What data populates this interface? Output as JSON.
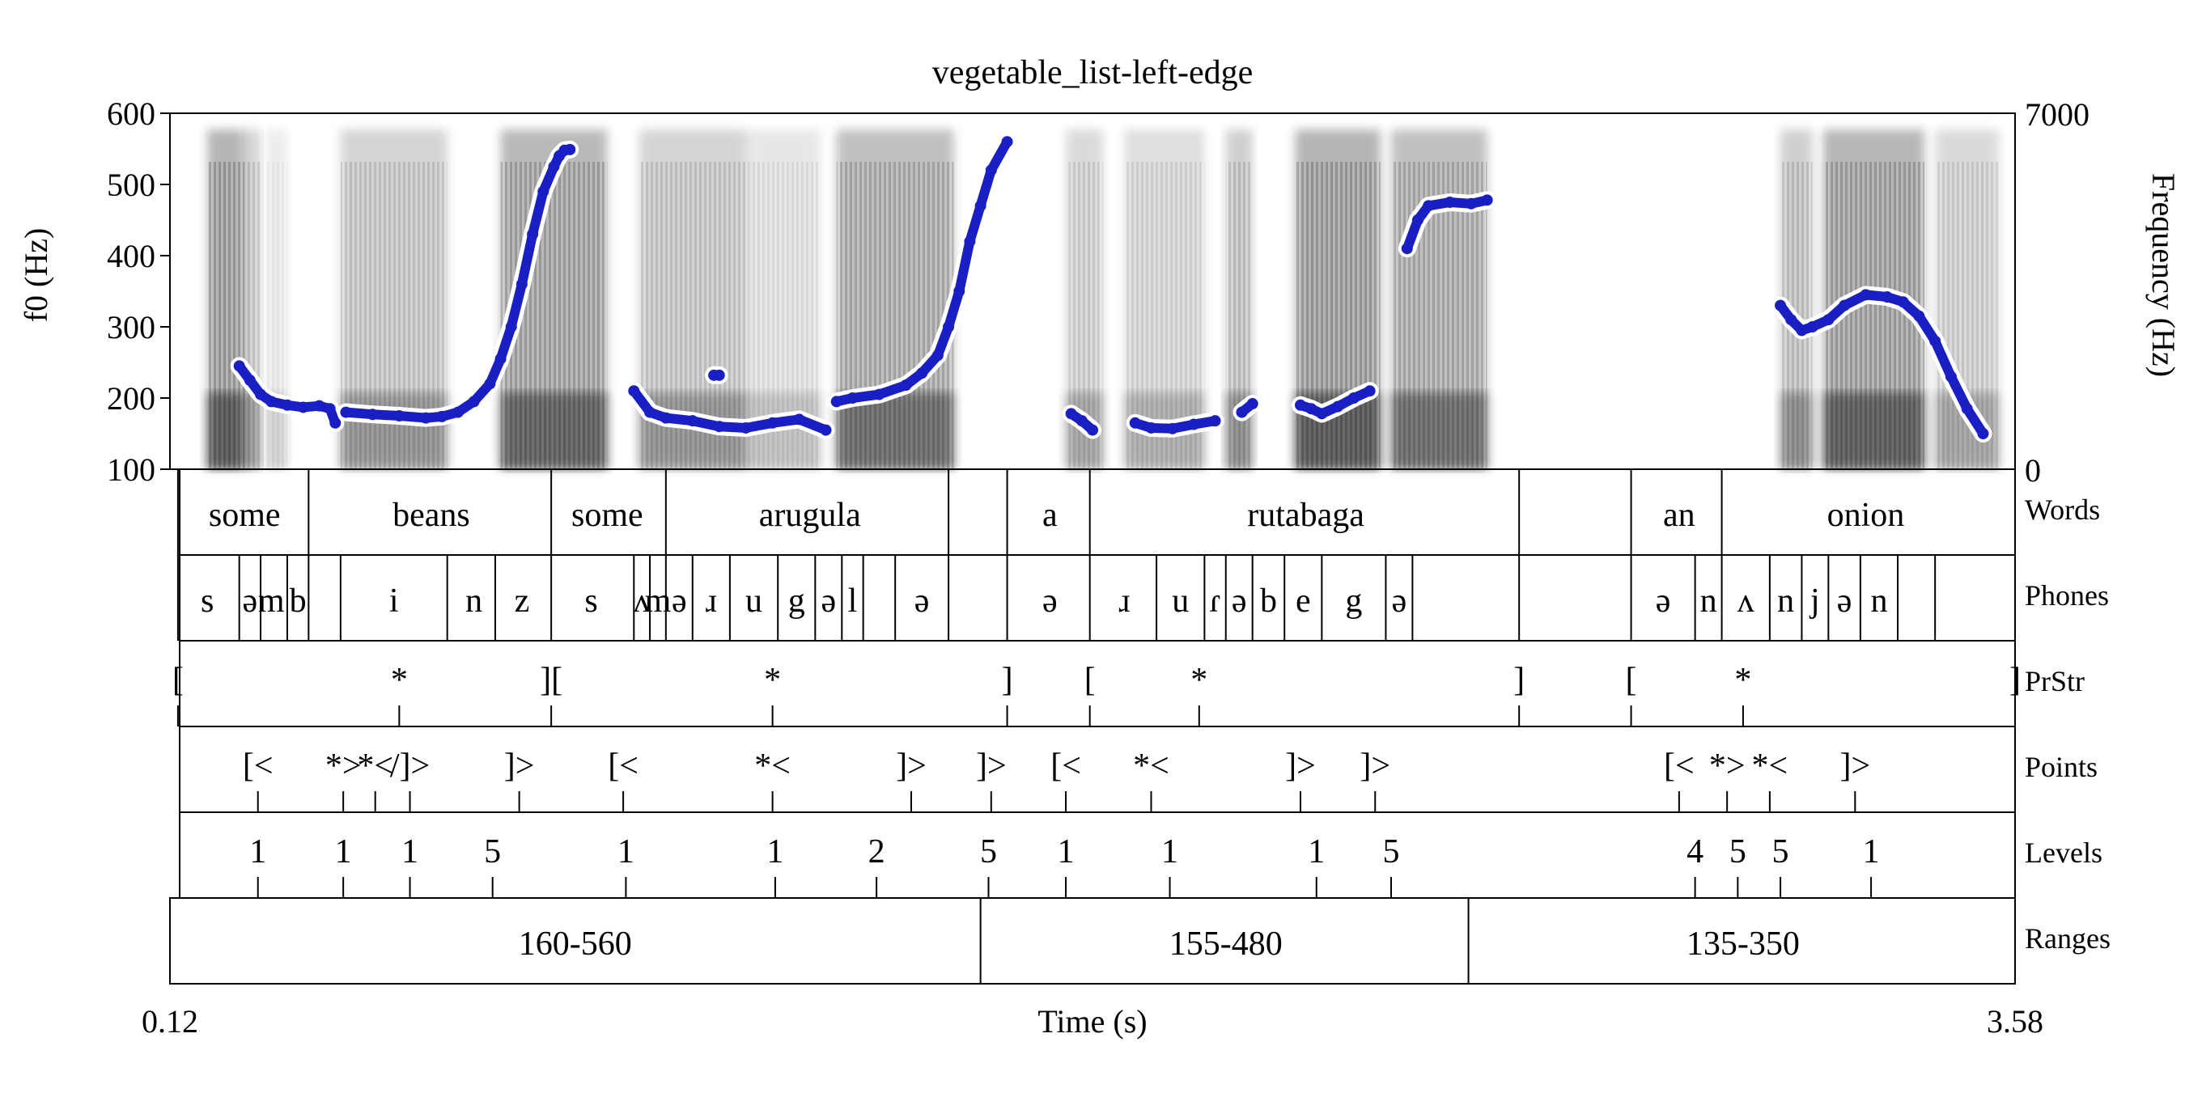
{
  "chart_data": {
    "type": "scatter",
    "title": "vegetable_list-left-edge",
    "xlabel": "Time (s)",
    "ylabel": "f0 (Hz)",
    "ylabel_right": "Frequency (Hz)",
    "xlim": [
      0.12,
      3.58
    ],
    "ylim": [
      100,
      600
    ],
    "yticks": [
      100,
      200,
      300,
      400,
      500,
      600
    ],
    "ylim_right": [
      0,
      7000
    ],
    "yticks_right": [
      "0",
      "7000"
    ],
    "xtick_labels": [
      "0.12",
      "3.58"
    ],
    "colors": {
      "f0": "#1a1fc4",
      "f0_halo": "#ffffff",
      "spectrogram": "#222222"
    },
    "spectrogram_blocks": [
      [
        0.19,
        0.26,
        0.95
      ],
      [
        0.26,
        0.29,
        0.55
      ],
      [
        0.3,
        0.34,
        0.22
      ],
      [
        0.44,
        0.64,
        0.55
      ],
      [
        0.74,
        0.94,
        0.88
      ],
      [
        1.0,
        1.2,
        0.55
      ],
      [
        1.2,
        1.34,
        0.3
      ],
      [
        1.37,
        1.59,
        0.8
      ],
      [
        1.8,
        1.87,
        0.45
      ],
      [
        1.91,
        2.06,
        0.4
      ],
      [
        2.1,
        2.15,
        0.6
      ],
      [
        2.23,
        2.39,
        0.95
      ],
      [
        2.41,
        2.59,
        0.8
      ],
      [
        3.14,
        3.2,
        0.6
      ],
      [
        3.22,
        3.41,
        0.9
      ],
      [
        3.43,
        3.55,
        0.45
      ]
    ],
    "f0_segments": [
      {
        "t": [
          0.25,
          0.27,
          0.29,
          0.31,
          0.34,
          0.37,
          0.4,
          0.42,
          0.43
        ],
        "f0": [
          245,
          225,
          205,
          195,
          190,
          187,
          189,
          185,
          165
        ]
      },
      {
        "t": [
          0.45,
          0.5,
          0.55,
          0.6,
          0.63,
          0.66,
          0.69,
          0.72,
          0.74,
          0.76,
          0.78,
          0.8,
          0.82,
          0.84,
          0.85,
          0.86,
          0.87
        ],
        "f0": [
          180,
          177,
          175,
          172,
          174,
          180,
          195,
          220,
          255,
          300,
          360,
          430,
          490,
          525,
          540,
          548,
          549
        ]
      },
      {
        "t": [
          0.99,
          1.02,
          1.05,
          1.1,
          1.15,
          1.2,
          1.25,
          1.3,
          1.35
        ],
        "f0": [
          210,
          180,
          172,
          168,
          160,
          158,
          165,
          170,
          155
        ]
      },
      {
        "t": [
          1.14,
          1.15
        ],
        "f0": [
          232,
          232
        ]
      },
      {
        "t": [
          1.37,
          1.4,
          1.45,
          1.5,
          1.53,
          1.56,
          1.58,
          1.6,
          1.62,
          1.64,
          1.66,
          1.69
        ],
        "f0": [
          195,
          200,
          205,
          218,
          235,
          260,
          300,
          350,
          420,
          470,
          520,
          560
        ]
      },
      {
        "t": [
          1.81,
          1.83,
          1.85
        ],
        "f0": [
          178,
          168,
          155
        ]
      },
      {
        "t": [
          1.93,
          1.96,
          2.0,
          2.04,
          2.08
        ],
        "f0": [
          165,
          158,
          157,
          163,
          168
        ]
      },
      {
        "t": [
          2.13,
          2.15
        ],
        "f0": [
          180,
          192
        ]
      },
      {
        "t": [
          2.24,
          2.26,
          2.28,
          2.31,
          2.34,
          2.37
        ],
        "f0": [
          190,
          185,
          178,
          188,
          200,
          210
        ]
      },
      {
        "t": [
          2.44,
          2.46,
          2.48,
          2.52,
          2.56,
          2.59
        ],
        "f0": [
          410,
          450,
          470,
          475,
          473,
          478
        ]
      },
      {
        "t": [
          3.14,
          3.16,
          3.18,
          3.2,
          3.23,
          3.26,
          3.3,
          3.34,
          3.37,
          3.4,
          3.43,
          3.46,
          3.49,
          3.52
        ],
        "f0": [
          330,
          310,
          295,
          300,
          310,
          330,
          345,
          342,
          335,
          315,
          280,
          230,
          185,
          150
        ]
      }
    ],
    "tiers": [
      {
        "name": "Words",
        "kind": "interval",
        "boundaries": [
          0.135,
          0.38,
          0.835,
          1.05,
          1.58,
          1.69,
          1.845,
          2.65,
          2.86,
          3.03,
          3.58
        ],
        "labels": [
          {
            "t": 0.26,
            "text": "some"
          },
          {
            "t": 0.61,
            "text": "beans"
          },
          {
            "t": 0.94,
            "text": "some"
          },
          {
            "t": 1.32,
            "text": "arugula"
          },
          {
            "t": 1.77,
            "text": "a"
          },
          {
            "t": 2.25,
            "text": "rutabaga"
          },
          {
            "t": 2.95,
            "text": "an"
          },
          {
            "t": 3.3,
            "text": "onion"
          }
        ]
      },
      {
        "name": "Phones",
        "kind": "interval",
        "boundaries": [
          0.135,
          0.25,
          0.29,
          0.34,
          0.38,
          0.44,
          0.64,
          0.73,
          0.835,
          0.99,
          1.02,
          1.05,
          1.1,
          1.17,
          1.26,
          1.33,
          1.38,
          1.42,
          1.48,
          1.58,
          1.69,
          1.845,
          1.97,
          2.06,
          2.1,
          2.15,
          2.21,
          2.28,
          2.4,
          2.45,
          2.65,
          2.86,
          2.98,
          3.03,
          3.12,
          3.18,
          3.23,
          3.29,
          3.36,
          3.43,
          3.58
        ],
        "labels": [
          {
            "t": 0.19,
            "text": "s"
          },
          {
            "t": 0.27,
            "text": "ə"
          },
          {
            "t": 0.31,
            "text": "m"
          },
          {
            "t": 0.36,
            "text": "b"
          },
          {
            "t": 0.54,
            "text": "i"
          },
          {
            "t": 0.69,
            "text": "n"
          },
          {
            "t": 0.78,
            "text": "z"
          },
          {
            "t": 0.91,
            "text": "s"
          },
          {
            "t": 1.005,
            "text": "ʌ"
          },
          {
            "t": 1.035,
            "text": "m"
          },
          {
            "t": 1.075,
            "text": "ə"
          },
          {
            "t": 1.135,
            "text": "ɹ"
          },
          {
            "t": 1.215,
            "text": "u"
          },
          {
            "t": 1.295,
            "text": "g"
          },
          {
            "t": 1.355,
            "text": "ə"
          },
          {
            "t": 1.4,
            "text": "l"
          },
          {
            "t": 1.53,
            "text": "ə"
          },
          {
            "t": 1.77,
            "text": "ə"
          },
          {
            "t": 1.91,
            "text": "ɹ"
          },
          {
            "t": 2.015,
            "text": "u"
          },
          {
            "t": 2.08,
            "text": "ɾ"
          },
          {
            "t": 2.125,
            "text": "ə"
          },
          {
            "t": 2.18,
            "text": "b"
          },
          {
            "t": 2.245,
            "text": "e"
          },
          {
            "t": 2.34,
            "text": "g"
          },
          {
            "t": 2.425,
            "text": "ə"
          },
          {
            "t": 2.92,
            "text": "ə"
          },
          {
            "t": 3.005,
            "text": "n"
          },
          {
            "t": 3.075,
            "text": "ʌ"
          },
          {
            "t": 3.15,
            "text": "n"
          },
          {
            "t": 3.205,
            "text": "j"
          },
          {
            "t": 3.26,
            "text": "ə"
          },
          {
            "t": 3.325,
            "text": "n"
          }
        ]
      },
      {
        "name": "PrStr",
        "kind": "point",
        "marks": [
          {
            "t": 0.135,
            "text": "["
          },
          {
            "t": 0.55,
            "text": "*"
          },
          {
            "t": 0.835,
            "text": "]["
          },
          {
            "t": 1.25,
            "text": "*"
          },
          {
            "t": 1.69,
            "text": "]"
          },
          {
            "t": 1.845,
            "text": "["
          },
          {
            "t": 2.05,
            "text": "*"
          },
          {
            "t": 2.65,
            "text": "]"
          },
          {
            "t": 2.86,
            "text": "["
          },
          {
            "t": 3.07,
            "text": "*"
          },
          {
            "t": 3.58,
            "text": "]"
          }
        ]
      },
      {
        "name": "Points",
        "kind": "point",
        "marks": [
          {
            "t": 0.285,
            "text": "[<"
          },
          {
            "t": 0.445,
            "text": "*>"
          },
          {
            "t": 0.505,
            "text": "*<"
          },
          {
            "t": 0.57,
            "text": "/]>"
          },
          {
            "t": 0.775,
            "text": "]>"
          },
          {
            "t": 0.97,
            "text": "[<"
          },
          {
            "t": 1.25,
            "text": "*<"
          },
          {
            "t": 1.51,
            "text": "]>"
          },
          {
            "t": 1.66,
            "text": "]>"
          },
          {
            "t": 1.8,
            "text": "[<"
          },
          {
            "t": 1.96,
            "text": "*<"
          },
          {
            "t": 2.24,
            "text": "]>"
          },
          {
            "t": 2.38,
            "text": "]>"
          },
          {
            "t": 2.95,
            "text": "[<"
          },
          {
            "t": 3.04,
            "text": "*>"
          },
          {
            "t": 3.12,
            "text": "*<"
          },
          {
            "t": 3.28,
            "text": "]>"
          }
        ]
      },
      {
        "name": "Levels",
        "kind": "point",
        "marks": [
          {
            "t": 0.285,
            "text": "1"
          },
          {
            "t": 0.445,
            "text": "1"
          },
          {
            "t": 0.57,
            "text": "1"
          },
          {
            "t": 0.725,
            "text": "5"
          },
          {
            "t": 0.975,
            "text": "1"
          },
          {
            "t": 1.255,
            "text": "1"
          },
          {
            "t": 1.445,
            "text": "2"
          },
          {
            "t": 1.655,
            "text": "5"
          },
          {
            "t": 1.8,
            "text": "1"
          },
          {
            "t": 1.995,
            "text": "1"
          },
          {
            "t": 2.27,
            "text": "1"
          },
          {
            "t": 2.41,
            "text": "5"
          },
          {
            "t": 2.98,
            "text": "4"
          },
          {
            "t": 3.06,
            "text": "5"
          },
          {
            "t": 3.14,
            "text": "5"
          },
          {
            "t": 3.31,
            "text": "1"
          }
        ]
      },
      {
        "name": "Ranges",
        "kind": "interval",
        "boundaries": [
          0.12,
          1.64,
          2.555,
          3.58
        ],
        "labels": [
          {
            "t": 0.88,
            "text": "160-560"
          },
          {
            "t": 2.1,
            "text": "155-480"
          },
          {
            "t": 3.07,
            "text": "135-350"
          }
        ]
      }
    ]
  }
}
